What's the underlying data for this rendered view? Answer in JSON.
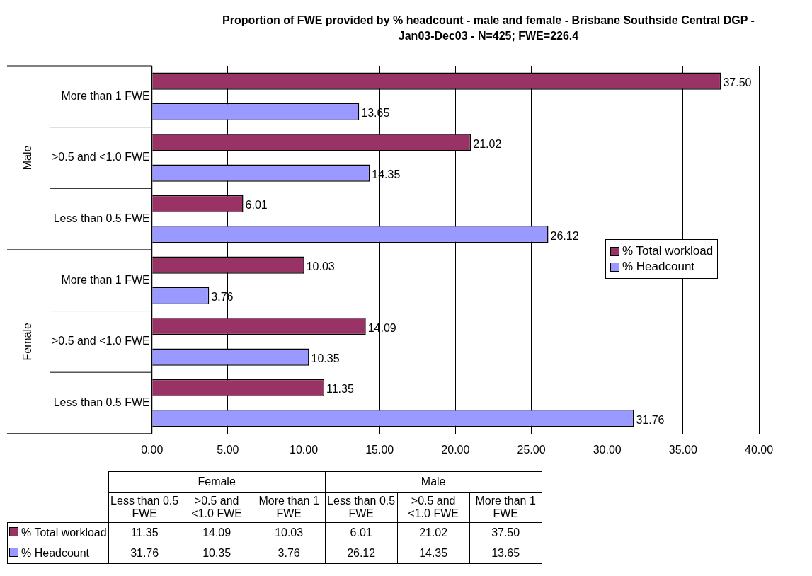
{
  "chart_data": {
    "type": "bar",
    "orientation": "horizontal",
    "title": "Proportion of FWE provided by % headcount - male and female - Brisbane Southside Central DGP - Jan03-Dec03 - N=425; FWE=226.4",
    "categories": [
      "More than 1 FWE",
      ">0.5 and <1.0 FWE",
      "Less than 0.5 FWE",
      "More than 1 FWE",
      ">0.5 and <1.0 FWE",
      "Less than 0.5 FWE"
    ],
    "annotations": [
      "Male",
      "Female"
    ],
    "series": [
      {
        "name": "% Total workload",
        "color": "#993366",
        "values": [
          37.5,
          21.02,
          6.01,
          10.03,
          14.09,
          11.35
        ],
        "value_labels": [
          "37.50",
          "21.02",
          "6.01",
          "10.03",
          "14.09",
          "11.35"
        ]
      },
      {
        "name": "% Headcount",
        "color": "#9999ff",
        "values": [
          13.65,
          14.35,
          26.12,
          3.76,
          10.35,
          31.76
        ],
        "value_labels": [
          "13.65",
          "14.35",
          "26.12",
          "3.76",
          "10.35",
          "31.76"
        ]
      }
    ],
    "xlim": [
      0,
      40
    ],
    "xticks": [
      {
        "value": 0,
        "label": "0.00"
      },
      {
        "value": 5,
        "label": "5.00"
      },
      {
        "value": 10,
        "label": "10.00"
      },
      {
        "value": 15,
        "label": "15.00"
      },
      {
        "value": 20,
        "label": "20.00"
      },
      {
        "value": 25,
        "label": "25.00"
      },
      {
        "value": 30,
        "label": "30.00"
      },
      {
        "value": 35,
        "label": "35.00"
      },
      {
        "value": 40,
        "label": "40.00"
      }
    ],
    "grid": "x",
    "legend": "right"
  }
}
